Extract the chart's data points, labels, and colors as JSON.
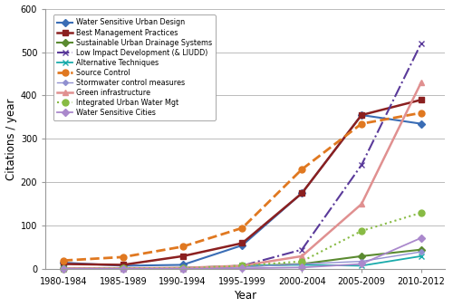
{
  "x_labels": [
    "1980-1984",
    "1985-1989",
    "1990-1994",
    "1995-1999",
    "2000-2004",
    "2005-2009",
    "2010-2012"
  ],
  "x_positions": [
    0,
    1,
    2,
    3,
    4,
    5,
    6
  ],
  "series": [
    {
      "name": "Water Sensitive Urban Design",
      "color": "#3A6DB5",
      "linestyle": "-",
      "marker": "D",
      "markersize": 4,
      "linewidth": 1.5,
      "values": [
        15,
        8,
        10,
        55,
        175,
        355,
        335
      ]
    },
    {
      "name": "Best Management Practices",
      "color": "#8B2020",
      "linestyle": "-",
      "marker": "s",
      "markersize": 4,
      "linewidth": 1.8,
      "values": [
        12,
        10,
        30,
        60,
        175,
        355,
        390
      ]
    },
    {
      "name": "Sustainable Urban Drainage Systems",
      "color": "#5A8A30",
      "linestyle": "-",
      "marker": "D",
      "markersize": 4,
      "linewidth": 1.5,
      "values": [
        2,
        2,
        3,
        7,
        12,
        30,
        45
      ]
    },
    {
      "name": "Low Impact Development (& LIUDD)",
      "color": "#5A3A9A",
      "linestyle": "-.",
      "marker": "x",
      "markersize": 5,
      "linewidth": 1.5,
      "values": [
        1,
        1,
        1,
        8,
        45,
        240,
        520
      ]
    },
    {
      "name": "Alternative Techniques",
      "color": "#1AABAB",
      "linestyle": "-",
      "marker": "x",
      "markersize": 5,
      "linewidth": 1.3,
      "values": [
        2,
        2,
        3,
        8,
        10,
        8,
        30
      ]
    },
    {
      "name": "Source Control",
      "color": "#E07820",
      "linestyle": "--",
      "marker": "o",
      "markersize": 5,
      "linewidth": 2.0,
      "values": [
        20,
        28,
        52,
        95,
        230,
        335,
        360
      ]
    },
    {
      "name": "Stormwater control measures",
      "color": "#9090D0",
      "linestyle": "-",
      "marker": "D",
      "markersize": 3,
      "linewidth": 1.0,
      "values": [
        1,
        1,
        2,
        5,
        12,
        18,
        40
      ]
    },
    {
      "name": "Green infrastructure",
      "color": "#E09090",
      "linestyle": "-",
      "marker": "^",
      "markersize": 5,
      "linewidth": 1.8,
      "values": [
        2,
        2,
        3,
        8,
        30,
        150,
        430
      ]
    },
    {
      "name": "Integrated Urban Water Mgt",
      "color": "#88BB44",
      "linestyle": ":",
      "marker": "o",
      "markersize": 5,
      "linewidth": 1.5,
      "values": [
        1,
        2,
        2,
        8,
        18,
        88,
        130
      ]
    },
    {
      "name": "Water Sensitive Cities",
      "color": "#AA88CC",
      "linestyle": "-",
      "marker": "D",
      "markersize": 4,
      "linewidth": 1.3,
      "values": [
        1,
        1,
        1,
        2,
        4,
        12,
        72
      ]
    }
  ],
  "ylabel": "Citations / year",
  "xlabel": "Year",
  "ylim": [
    0,
    600
  ],
  "yticks": [
    0,
    100,
    200,
    300,
    400,
    500,
    600
  ],
  "background_color": "#ffffff",
  "grid_color": "#bbbbbb"
}
